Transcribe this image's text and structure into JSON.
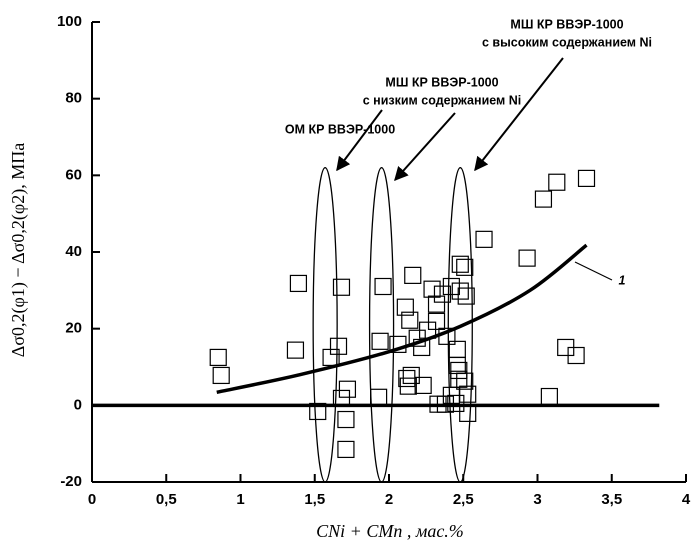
{
  "chart_data": {
    "type": "scatter",
    "x_label": "CNi + CMn , мас.%",
    "y_label": "Δσ0,2(φ1) − Δσ0,2(φ2), МПа",
    "xlim": [
      0,
      4
    ],
    "ylim": [
      -20,
      100
    ],
    "xticks": [
      0,
      {
        "value": 0.5,
        "label": "0,5"
      },
      1,
      {
        "value": 1.5,
        "label": "1,5"
      },
      2,
      {
        "value": 2.5,
        "label": "2,5"
      },
      3,
      {
        "value": 3.5,
        "label": "3,5"
      },
      4
    ],
    "yticks": [
      -20,
      0,
      20,
      40,
      60,
      80,
      100
    ],
    "grid": false,
    "color": "#000000",
    "series": [
      {
        "type": "scatter",
        "marker": "square",
        "x": [
          0.85,
          0.87,
          1.39,
          1.37,
          1.52,
          1.61,
          1.66,
          1.68,
          1.68,
          1.71,
          1.72,
          1.71,
          1.93,
          1.96,
          1.94,
          2.06,
          2.11,
          2.14,
          2.16,
          2.12,
          2.13,
          2.15,
          2.19,
          2.22,
          2.23,
          2.26,
          2.29,
          2.32,
          2.32,
          2.33,
          2.38,
          2.39,
          2.36,
          2.42,
          2.42,
          2.45,
          2.46,
          2.46,
          2.47,
          2.47,
          2.48,
          2.48,
          2.51,
          2.52,
          2.51,
          2.53,
          2.53,
          2.64,
          2.93,
          3.04,
          3.13,
          3.33,
          3.19,
          3.26,
          3.08
        ],
        "values": [
          12.5,
          7.8,
          31.8,
          14.4,
          -1.6,
          12.5,
          15.4,
          30.8,
          1.8,
          -3.7,
          4.2,
          -11.5,
          2.1,
          31,
          16.7,
          15.9,
          25.6,
          22.2,
          33.9,
          7,
          5,
          7.8,
          17.5,
          15.1,
          5.2,
          19.6,
          30.3,
          26.4,
          21.9,
          0.3,
          0.3,
          18,
          29,
          31,
          2.6,
          0.5,
          14.6,
          10.4,
          9.1,
          6.8,
          29.8,
          36.8,
          36,
          28.5,
          6.3,
          2.9,
          -2.1,
          43.3,
          38.4,
          53.8,
          58.2,
          59.2,
          15.1,
          13,
          2.3
        ]
      },
      {
        "type": "line",
        "x": [
          0.84,
          1.4,
          2.0,
          2.48,
          2.95,
          3.33
        ],
        "values": [
          3.4,
          8,
          14,
          20.6,
          30,
          41.8
        ]
      },
      {
        "type": "line",
        "x": [
          0,
          3.82
        ],
        "values": [
          0,
          0
        ]
      }
    ],
    "ellipses": [
      {
        "x": 1.57,
        "y0": -20,
        "y1": 62
      },
      {
        "x": 1.95,
        "y0": -20,
        "y1": 62
      },
      {
        "x": 2.48,
        "y0": -20,
        "y1": 62
      }
    ],
    "annotations": [
      {
        "lines": [
          "ОМ КР ВВЭР-1000"
        ]
      },
      {
        "lines": [
          "МШ КР ВВЭР-1000",
          "с низким содержанием Ni"
        ]
      },
      {
        "lines": [
          "МШ КР ВВЭР-1000",
          "с высоким содержанием Ni"
        ]
      },
      {
        "lines": [
          "1"
        ]
      }
    ]
  }
}
